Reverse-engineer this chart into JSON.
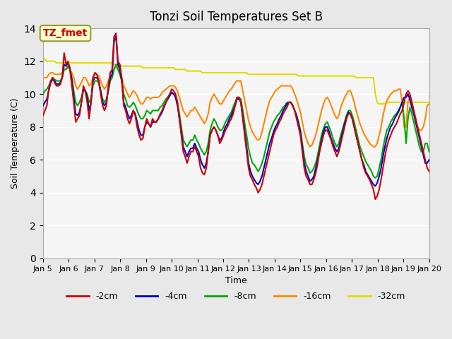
{
  "title": "Tonzi Soil Temperatures Set B",
  "xlabel": "Time",
  "ylabel": "Soil Temperature (C)",
  "annotation": "TZ_fmet",
  "annotation_color": "#cc0000",
  "annotation_bg": "#ffffcc",
  "annotation_border": "#999933",
  "ylim": [
    0,
    14
  ],
  "yticks": [
    0,
    2,
    4,
    6,
    8,
    10,
    12,
    14
  ],
  "xstart": 5,
  "xend": 20,
  "xtick_labels": [
    "Jan 5",
    "Jan 6",
    "Jan 7",
    "Jan 8",
    "Jan 9",
    "Jan 10",
    "Jan 11",
    "Jan 12",
    "Jan 13",
    "Jan 14",
    "Jan 15",
    "Jan 16",
    "Jan 17",
    "Jan 18",
    "Jan 19",
    "Jan 20"
  ],
  "series": {
    "-2cm": {
      "color": "#cc0000",
      "lw": 1.5
    },
    "-4cm": {
      "color": "#0000cc",
      "lw": 1.5
    },
    "-8cm": {
      "color": "#00aa00",
      "lw": 1.5
    },
    "-16cm": {
      "color": "#ff8800",
      "lw": 1.5
    },
    "-32cm": {
      "color": "#dddd00",
      "lw": 1.5
    }
  },
  "bg_color": "#e8e8e8",
  "plot_bg": "#f5f5f5",
  "grid_color": "#ffffff",
  "t_2cm": [
    8.7,
    9.0,
    9.3,
    10.3,
    10.8,
    11.0,
    10.7,
    10.5,
    10.5,
    10.6,
    11.0,
    12.5,
    11.8,
    12.0,
    11.5,
    10.5,
    9.5,
    8.3,
    8.5,
    8.7,
    9.5,
    10.5,
    10.2,
    9.5,
    8.5,
    9.5,
    11.0,
    11.3,
    11.2,
    10.8,
    10.0,
    9.3,
    9.0,
    9.3,
    10.5,
    11.3,
    11.5,
    13.5,
    13.7,
    12.0,
    11.8,
    11.0,
    9.3,
    9.0,
    8.5,
    8.2,
    8.5,
    9.0,
    8.7,
    8.0,
    7.5,
    7.2,
    7.3,
    8.0,
    8.5,
    8.2,
    8.0,
    8.5,
    8.3,
    8.3,
    8.5,
    8.8,
    9.0,
    9.3,
    9.5,
    9.8,
    10.0,
    10.3,
    10.2,
    10.0,
    9.5,
    8.5,
    7.5,
    6.5,
    6.2,
    5.8,
    6.2,
    6.5,
    6.5,
    6.8,
    6.5,
    6.2,
    5.5,
    5.2,
    5.1,
    5.5,
    6.5,
    7.5,
    7.8,
    8.0,
    7.8,
    7.5,
    7.0,
    7.2,
    7.5,
    7.8,
    8.0,
    8.3,
    8.5,
    8.8,
    9.3,
    9.8,
    9.8,
    9.5,
    8.5,
    7.5,
    6.5,
    5.5,
    5.0,
    4.8,
    4.5,
    4.3,
    4.0,
    4.2,
    4.5,
    5.0,
    5.5,
    6.0,
    6.5,
    7.0,
    7.5,
    7.8,
    8.0,
    8.3,
    8.5,
    8.8,
    9.0,
    9.2,
    9.5,
    9.5,
    9.3,
    9.0,
    8.5,
    8.0,
    7.5,
    6.5,
    5.5,
    5.0,
    4.8,
    4.5,
    4.5,
    4.8,
    5.2,
    5.8,
    6.5,
    7.0,
    7.5,
    7.8,
    7.8,
    7.5,
    7.2,
    6.8,
    6.5,
    6.2,
    6.5,
    7.0,
    7.5,
    8.0,
    8.5,
    8.8,
    8.8,
    8.5,
    8.0,
    7.5,
    7.0,
    6.5,
    6.0,
    5.5,
    5.2,
    5.0,
    4.8,
    4.5,
    4.2,
    3.6,
    3.8,
    4.2,
    4.8,
    5.5,
    6.2,
    6.8,
    7.2,
    7.5,
    7.8,
    8.0,
    8.2,
    8.5,
    8.8,
    9.0,
    9.5,
    10.0,
    10.2,
    10.0,
    9.5,
    9.0,
    8.5,
    8.0,
    7.5,
    7.0,
    6.5,
    6.0,
    5.5,
    5.3
  ],
  "t_4cm": [
    9.3,
    9.5,
    9.7,
    10.2,
    10.7,
    10.9,
    10.8,
    10.6,
    10.6,
    10.7,
    11.0,
    11.8,
    11.7,
    11.9,
    11.6,
    10.8,
    9.8,
    8.8,
    8.7,
    8.9,
    9.5,
    10.3,
    10.2,
    9.8,
    9.0,
    9.5,
    10.8,
    11.0,
    11.0,
    10.8,
    10.2,
    9.5,
    9.3,
    9.5,
    10.3,
    11.0,
    11.2,
    13.2,
    13.5,
    11.8,
    11.5,
    10.8,
    9.5,
    9.2,
    8.8,
    8.5,
    8.7,
    9.0,
    8.8,
    8.3,
    7.8,
    7.5,
    7.5,
    8.0,
    8.3,
    8.2,
    8.0,
    8.3,
    8.3,
    8.3,
    8.5,
    8.7,
    8.9,
    9.2,
    9.5,
    9.7,
    9.9,
    10.1,
    10.0,
    9.8,
    9.3,
    8.5,
    7.7,
    6.8,
    6.5,
    6.2,
    6.5,
    6.7,
    6.7,
    7.0,
    6.7,
    6.5,
    6.0,
    5.7,
    5.5,
    5.8,
    6.5,
    7.5,
    7.8,
    8.0,
    7.8,
    7.5,
    7.2,
    7.3,
    7.7,
    8.0,
    8.2,
    8.5,
    8.7,
    9.0,
    9.3,
    9.7,
    9.7,
    9.5,
    8.7,
    7.7,
    6.8,
    5.8,
    5.3,
    5.0,
    4.8,
    4.6,
    4.5,
    4.7,
    5.0,
    5.5,
    6.0,
    6.5,
    7.0,
    7.3,
    7.7,
    8.0,
    8.2,
    8.5,
    8.7,
    9.0,
    9.2,
    9.4,
    9.5,
    9.5,
    9.3,
    9.0,
    8.7,
    8.2,
    7.7,
    6.8,
    5.8,
    5.3,
    5.0,
    4.7,
    4.8,
    5.0,
    5.5,
    6.0,
    6.6,
    7.2,
    7.7,
    8.0,
    8.0,
    7.7,
    7.3,
    7.0,
    6.7,
    6.5,
    6.7,
    7.2,
    7.7,
    8.2,
    8.6,
    8.9,
    8.8,
    8.5,
    8.0,
    7.5,
    7.0,
    6.5,
    6.0,
    5.7,
    5.3,
    5.1,
    4.9,
    4.7,
    4.5,
    4.4,
    4.6,
    5.0,
    5.5,
    6.2,
    6.8,
    7.3,
    7.7,
    8.0,
    8.2,
    8.5,
    8.7,
    8.9,
    9.2,
    9.5,
    9.8,
    9.8,
    10.0,
    9.7,
    9.2,
    8.8,
    8.3,
    7.8,
    7.3,
    6.8,
    6.3,
    5.8,
    5.8,
    6.0
  ],
  "t_8cm": [
    10.0,
    10.2,
    10.3,
    10.5,
    10.8,
    11.0,
    10.9,
    10.8,
    10.8,
    10.8,
    11.0,
    11.5,
    11.5,
    11.7,
    11.5,
    11.0,
    10.2,
    9.5,
    9.3,
    9.5,
    9.8,
    10.2,
    10.2,
    10.0,
    9.5,
    9.7,
    10.5,
    10.8,
    10.8,
    10.7,
    10.2,
    9.7,
    9.5,
    9.7,
    10.2,
    10.8,
    11.0,
    11.5,
    11.8,
    11.5,
    11.2,
    10.8,
    10.0,
    9.7,
    9.3,
    9.2,
    9.3,
    9.5,
    9.3,
    9.0,
    8.7,
    8.5,
    8.5,
    8.7,
    9.0,
    8.9,
    8.8,
    9.0,
    9.0,
    9.0,
    9.0,
    9.2,
    9.3,
    9.5,
    9.7,
    9.8,
    10.0,
    10.1,
    10.0,
    9.9,
    9.5,
    8.8,
    8.0,
    7.2,
    7.0,
    6.8,
    7.0,
    7.2,
    7.2,
    7.5,
    7.2,
    7.0,
    6.7,
    6.5,
    6.3,
    6.5,
    7.0,
    7.8,
    8.2,
    8.5,
    8.3,
    8.0,
    7.8,
    7.8,
    8.0,
    8.3,
    8.5,
    8.7,
    8.9,
    9.2,
    9.5,
    9.8,
    9.8,
    9.7,
    9.0,
    8.2,
    7.5,
    6.7,
    6.2,
    5.8,
    5.7,
    5.5,
    5.3,
    5.5,
    5.8,
    6.2,
    6.7,
    7.2,
    7.7,
    8.0,
    8.3,
    8.5,
    8.7,
    8.8,
    9.0,
    9.2,
    9.3,
    9.5,
    9.5,
    9.5,
    9.3,
    9.0,
    8.7,
    8.3,
    7.8,
    7.0,
    6.2,
    5.7,
    5.5,
    5.2,
    5.3,
    5.5,
    5.8,
    6.3,
    6.9,
    7.5,
    7.9,
    8.2,
    8.3,
    8.0,
    7.7,
    7.3,
    7.0,
    6.8,
    7.0,
    7.5,
    7.9,
    8.3,
    8.7,
    9.0,
    9.0,
    8.7,
    8.3,
    7.8,
    7.3,
    6.8,
    6.5,
    6.2,
    5.9,
    5.7,
    5.5,
    5.3,
    5.0,
    4.9,
    5.0,
    5.5,
    6.0,
    6.7,
    7.3,
    7.8,
    8.0,
    8.3,
    8.5,
    8.7,
    8.8,
    9.0,
    9.2,
    9.5,
    8.5,
    7.0,
    8.5,
    9.2,
    8.8,
    8.3,
    7.8,
    7.3,
    6.8,
    6.5,
    6.5,
    7.0,
    7.0,
    6.5
  ],
  "t_16cm": [
    11.0,
    11.0,
    11.0,
    11.2,
    11.3,
    11.3,
    11.2,
    11.2,
    11.2,
    11.2,
    11.3,
    11.5,
    11.5,
    11.6,
    11.5,
    11.3,
    11.0,
    10.5,
    10.3,
    10.5,
    10.7,
    11.0,
    11.0,
    10.8,
    10.5,
    10.6,
    11.0,
    11.2,
    11.2,
    11.1,
    10.8,
    10.5,
    10.3,
    10.5,
    10.8,
    11.1,
    11.2,
    11.5,
    11.7,
    11.5,
    11.3,
    11.0,
    10.5,
    10.3,
    10.0,
    9.8,
    10.0,
    10.2,
    10.1,
    9.9,
    9.6,
    9.4,
    9.4,
    9.6,
    9.8,
    9.8,
    9.7,
    9.8,
    9.8,
    9.8,
    9.8,
    9.9,
    10.1,
    10.2,
    10.3,
    10.4,
    10.5,
    10.5,
    10.5,
    10.4,
    10.2,
    9.8,
    9.4,
    9.0,
    8.8,
    8.6,
    8.8,
    9.0,
    9.0,
    9.2,
    9.0,
    8.8,
    8.6,
    8.4,
    8.2,
    8.4,
    8.8,
    9.5,
    9.8,
    10.0,
    9.8,
    9.6,
    9.4,
    9.4,
    9.6,
    9.8,
    10.0,
    10.2,
    10.3,
    10.5,
    10.7,
    10.8,
    10.8,
    10.8,
    10.2,
    9.6,
    9.0,
    8.4,
    8.0,
    7.7,
    7.5,
    7.3,
    7.2,
    7.3,
    7.7,
    8.2,
    8.7,
    9.2,
    9.6,
    9.8,
    10.0,
    10.2,
    10.3,
    10.4,
    10.5,
    10.5,
    10.5,
    10.5,
    10.5,
    10.5,
    10.3,
    10.0,
    9.7,
    9.3,
    8.9,
    8.3,
    7.7,
    7.3,
    7.0,
    6.8,
    6.9,
    7.2,
    7.5,
    8.0,
    8.5,
    9.0,
    9.4,
    9.7,
    9.8,
    9.6,
    9.3,
    9.0,
    8.7,
    8.5,
    8.7,
    9.2,
    9.5,
    9.8,
    10.0,
    10.2,
    10.2,
    9.9,
    9.5,
    9.0,
    8.6,
    8.2,
    7.9,
    7.6,
    7.4,
    7.2,
    7.0,
    6.9,
    6.8,
    6.8,
    7.0,
    7.5,
    8.0,
    8.7,
    9.2,
    9.6,
    9.8,
    10.0,
    10.1,
    10.2,
    10.2,
    10.3,
    10.3,
    9.5,
    8.0,
    8.0,
    9.5,
    9.8,
    9.5,
    9.0,
    8.5,
    8.0,
    7.8,
    7.8,
    8.0,
    8.5,
    9.3,
    9.4
  ],
  "t_32cm": [
    12.2,
    12.1,
    12.0,
    12.0,
    12.0,
    12.0,
    12.0,
    11.9,
    11.9,
    11.9,
    11.9,
    11.9,
    11.9,
    11.9,
    11.9,
    11.9,
    11.9,
    11.9,
    11.9,
    11.9,
    11.9,
    11.9,
    11.9,
    11.9,
    11.9,
    11.9,
    11.9,
    11.9,
    11.9,
    11.9,
    11.9,
    11.9,
    11.9,
    11.9,
    11.9,
    11.9,
    11.9,
    11.8,
    11.8,
    11.8,
    11.8,
    11.7,
    11.7,
    11.7,
    11.7,
    11.7,
    11.7,
    11.7,
    11.7,
    11.7,
    11.7,
    11.7,
    11.6,
    11.6,
    11.6,
    11.6,
    11.6,
    11.6,
    11.6,
    11.6,
    11.6,
    11.6,
    11.6,
    11.6,
    11.6,
    11.6,
    11.6,
    11.6,
    11.6,
    11.5,
    11.5,
    11.5,
    11.5,
    11.5,
    11.5,
    11.4,
    11.4,
    11.4,
    11.4,
    11.4,
    11.4,
    11.4,
    11.4,
    11.3,
    11.3,
    11.3,
    11.3,
    11.3,
    11.3,
    11.3,
    11.3,
    11.3,
    11.3,
    11.3,
    11.3,
    11.3,
    11.3,
    11.3,
    11.3,
    11.3,
    11.3,
    11.3,
    11.3,
    11.3,
    11.3,
    11.3,
    11.3,
    11.2,
    11.2,
    11.2,
    11.2,
    11.2,
    11.2,
    11.2,
    11.2,
    11.2,
    11.2,
    11.2,
    11.2,
    11.2,
    11.2,
    11.2,
    11.2,
    11.2,
    11.2,
    11.2,
    11.2,
    11.2,
    11.2,
    11.2,
    11.2,
    11.2,
    11.2,
    11.1,
    11.1,
    11.1,
    11.1,
    11.1,
    11.1,
    11.1,
    11.1,
    11.1,
    11.1,
    11.1,
    11.1,
    11.1,
    11.1,
    11.1,
    11.1,
    11.1,
    11.1,
    11.1,
    11.1,
    11.1,
    11.1,
    11.1,
    11.1,
    11.1,
    11.1,
    11.1,
    11.1,
    11.1,
    11.1,
    11.0,
    11.0,
    11.0,
    11.0,
    11.0,
    11.0,
    11.0,
    11.0,
    11.0,
    11.0,
    10.0,
    9.5,
    9.4,
    9.4,
    9.4,
    9.4,
    9.5,
    9.5,
    9.5,
    9.5,
    9.5,
    9.5,
    9.5,
    9.5,
    9.5,
    9.5,
    9.5,
    9.5,
    9.5,
    9.5,
    9.5,
    9.5,
    9.5,
    9.5,
    9.5,
    9.5,
    9.5,
    9.5,
    9.5
  ]
}
